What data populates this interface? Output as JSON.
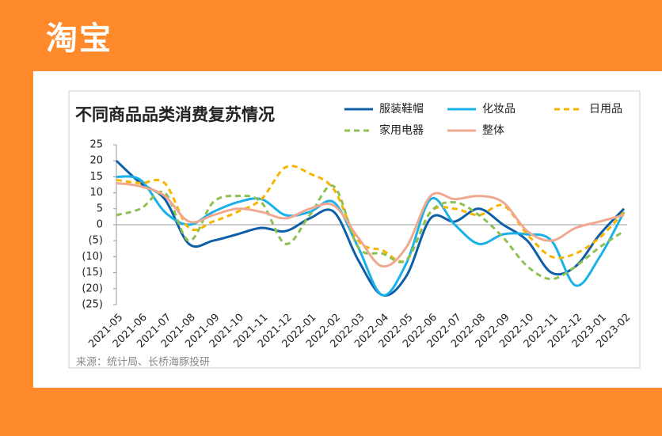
{
  "header": {
    "logo": "淘宝"
  },
  "chart_data": {
    "type": "line",
    "title": "不同商品品类消费复苏情况",
    "source": "来源：统计局、长桥海豚投研",
    "categories": [
      "2021-05",
      "2021-06",
      "2021-07",
      "2021-08",
      "2021-09",
      "2021-10",
      "2021-11",
      "2021-12",
      "2022-01",
      "2022-02",
      "2022-03",
      "2022-04",
      "2022-05",
      "2022-06",
      "2022-07",
      "2022-08",
      "2022-09",
      "2022-10",
      "2022-11",
      "2022-12",
      "2023-01",
      "2023-02"
    ],
    "series": [
      {
        "name": "服装鞋帽",
        "color": "#0e5fa8",
        "dash": false,
        "values": [
          20,
          13,
          8,
          -6,
          -5,
          -3,
          -1,
          -2,
          2,
          4,
          -11,
          -22,
          -16,
          2,
          1,
          5,
          0,
          -5,
          -15,
          -13,
          -3,
          5
        ]
      },
      {
        "name": "化妆品",
        "color": "#1ab0e8",
        "dash": false,
        "values": [
          15,
          14,
          4,
          0,
          4,
          7,
          8,
          3,
          4,
          7,
          -7,
          -22,
          -12,
          8,
          0,
          -6,
          -3,
          -3,
          -5,
          -19,
          -10,
          4
        ]
      },
      {
        "name": "日用品",
        "color": "#f7b500",
        "dash": true,
        "values": [
          14,
          13,
          13,
          -1,
          1,
          4,
          8,
          18,
          16,
          11,
          -5,
          -8,
          -11,
          4,
          5,
          3,
          6,
          -3,
          -10,
          -9,
          -4,
          4
        ]
      },
      {
        "name": "家用电器",
        "color": "#8cc152",
        "dash": true,
        "values": [
          3,
          5,
          10,
          -5,
          7,
          9,
          7,
          -6,
          3,
          12,
          -7,
          -9,
          -11,
          4,
          7,
          3,
          -4,
          -13,
          -17,
          -13,
          -7,
          -2
        ]
      },
      {
        "name": "整体",
        "color": "#f0a890",
        "dash": false,
        "values": [
          13,
          12,
          9,
          1,
          3,
          5,
          4,
          2,
          5,
          6,
          -4,
          -13,
          -7,
          9,
          8,
          9,
          7,
          -2,
          -5,
          -1,
          1,
          3
        ]
      }
    ],
    "ylim": [
      -25,
      25
    ],
    "yticks": [
      {
        "value": -25,
        "label": "(25)"
      },
      {
        "value": -20,
        "label": "(20)"
      },
      {
        "value": -15,
        "label": "(15)"
      },
      {
        "value": -10,
        "label": "(10)"
      },
      {
        "value": -5,
        "label": "(5)"
      },
      0,
      5,
      10,
      15,
      20,
      25
    ],
    "negative_tick_color": "#e00000",
    "grid": false
  }
}
